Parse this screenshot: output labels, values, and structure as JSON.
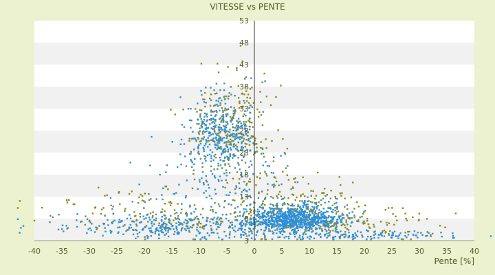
{
  "chart_data": {
    "type": "scatter",
    "title": "VITESSE vs PENTE",
    "xlabel": "Pente [%]",
    "ylabel": "",
    "xlim": [
      -40,
      40
    ],
    "ylim": [
      3,
      53
    ],
    "x_ticks": [
      "-40",
      "-35",
      "-30",
      "-25",
      "-20",
      "-15",
      "-10",
      "-5",
      "0",
      "5",
      "10",
      "15",
      "20",
      "25",
      "30",
      "35",
      "40"
    ],
    "y_ticks": [
      "3",
      "8",
      "13",
      "18",
      "23",
      "28",
      "33",
      "38",
      "43",
      "48",
      "53"
    ],
    "grid": "horizontal alternating bands",
    "legend": "none",
    "series": [
      {
        "color": "#2f8fd8",
        "clusters": [
          {
            "count": 340,
            "x_center": -6,
            "x_spread": 3.2,
            "y_center": 26,
            "y_spread": 5.5
          },
          {
            "count": 820,
            "x_center": 7,
            "x_spread": 4.5,
            "y_center": 7.5,
            "y_spread": 1.8
          },
          {
            "count": 320,
            "x_center": -14,
            "x_spread": 10,
            "y_center": 6,
            "y_spread": 2.2
          },
          {
            "count": 160,
            "x_center": 16,
            "x_spread": 10,
            "y_center": 4,
            "y_spread": 0.7
          },
          {
            "count": 120,
            "x_center": -5,
            "x_spread": 7,
            "y_center": 15,
            "y_spread": 5
          }
        ]
      },
      {
        "color": "#8a8a1a",
        "clusters": [
          {
            "count": 280,
            "x_center": -4,
            "x_spread": 3.6,
            "y_center": 27,
            "y_spread": 7
          },
          {
            "count": 260,
            "x_center": 6,
            "x_spread": 6,
            "y_center": 9,
            "y_spread": 4
          },
          {
            "count": 160,
            "x_center": -18,
            "x_spread": 10,
            "y_center": 8,
            "y_spread": 3.5
          },
          {
            "count": 120,
            "x_center": 18,
            "x_spread": 9,
            "y_center": 6,
            "y_spread": 2.5
          }
        ]
      }
    ]
  }
}
